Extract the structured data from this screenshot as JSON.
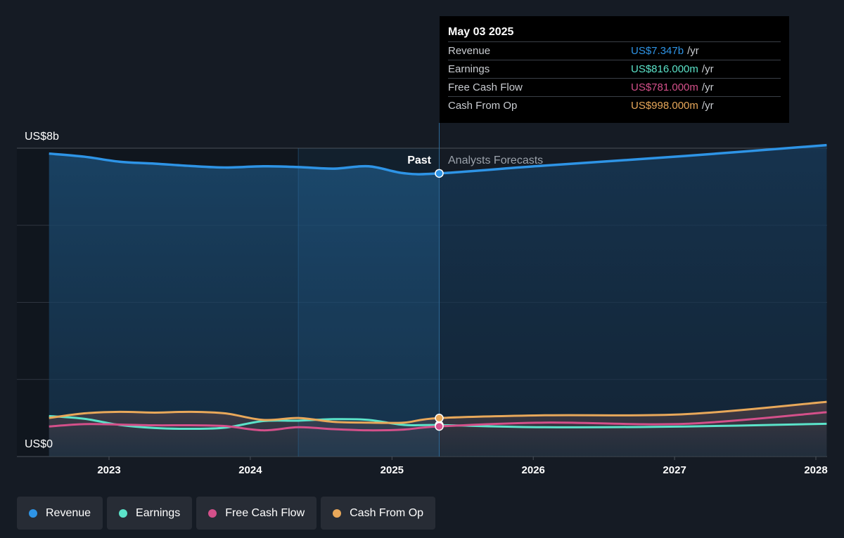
{
  "chart_data": {
    "type": "line",
    "y_axis": {
      "min": 0,
      "max": 8,
      "unit": "US$b",
      "top_label": "US$8b",
      "bottom_label": "US$0"
    },
    "x_axis": {
      "ticks": [
        "2023",
        "2024",
        "2025",
        "2026",
        "2027",
        "2028"
      ]
    },
    "regions": {
      "past_label": "Past",
      "forecast_label": "Analysts Forecasts",
      "divider_date": "2025-05-03"
    },
    "series": [
      {
        "name": "Revenue",
        "color": "#2e94e6",
        "points": [
          [
            "2022-07-30",
            7.86
          ],
          [
            "2022-10-29",
            7.78
          ],
          [
            "2023-01-28",
            7.65
          ],
          [
            "2023-04-29",
            7.6
          ],
          [
            "2023-07-29",
            7.54
          ],
          [
            "2023-10-28",
            7.5
          ],
          [
            "2024-02-03",
            7.53
          ],
          [
            "2024-05-04",
            7.51
          ],
          [
            "2024-08-03",
            7.47
          ],
          [
            "2024-11-02",
            7.53
          ],
          [
            "2025-02-01",
            7.35
          ],
          [
            "2025-05-03",
            7.347
          ],
          [
            "2026-01-31",
            7.55
          ],
          [
            "2027-01-30",
            7.8
          ],
          [
            "2028-01-29",
            8.08
          ]
        ]
      },
      {
        "name": "Earnings",
        "color": "#5be3c9",
        "points": [
          [
            "2022-07-30",
            1.05
          ],
          [
            "2022-10-29",
            0.98
          ],
          [
            "2023-01-28",
            0.82
          ],
          [
            "2023-04-29",
            0.74
          ],
          [
            "2023-07-29",
            0.72
          ],
          [
            "2023-10-28",
            0.75
          ],
          [
            "2024-02-03",
            0.92
          ],
          [
            "2024-05-04",
            0.93
          ],
          [
            "2024-08-03",
            0.97
          ],
          [
            "2024-11-02",
            0.95
          ],
          [
            "2025-02-01",
            0.82
          ],
          [
            "2025-05-03",
            0.816
          ],
          [
            "2026-01-31",
            0.76
          ],
          [
            "2027-01-30",
            0.78
          ],
          [
            "2028-01-29",
            0.85
          ]
        ]
      },
      {
        "name": "Free Cash Flow",
        "color": "#d4508a",
        "points": [
          [
            "2022-07-30",
            0.78
          ],
          [
            "2022-10-29",
            0.84
          ],
          [
            "2023-01-28",
            0.83
          ],
          [
            "2023-04-29",
            0.81
          ],
          [
            "2023-07-29",
            0.81
          ],
          [
            "2023-10-28",
            0.79
          ],
          [
            "2024-02-03",
            0.68
          ],
          [
            "2024-05-04",
            0.76
          ],
          [
            "2024-08-03",
            0.71
          ],
          [
            "2024-11-02",
            0.68
          ],
          [
            "2025-02-01",
            0.7
          ],
          [
            "2025-05-03",
            0.781
          ],
          [
            "2026-01-31",
            0.88
          ],
          [
            "2027-01-30",
            0.85
          ],
          [
            "2028-01-29",
            1.15
          ]
        ]
      },
      {
        "name": "Cash From Op",
        "color": "#e8a85a",
        "points": [
          [
            "2022-07-30",
            1.0
          ],
          [
            "2022-10-29",
            1.12
          ],
          [
            "2023-01-28",
            1.16
          ],
          [
            "2023-04-29",
            1.14
          ],
          [
            "2023-07-29",
            1.16
          ],
          [
            "2023-10-28",
            1.12
          ],
          [
            "2024-02-03",
            0.95
          ],
          [
            "2024-05-04",
            1.0
          ],
          [
            "2024-08-03",
            0.9
          ],
          [
            "2024-11-02",
            0.88
          ],
          [
            "2025-02-01",
            0.88
          ],
          [
            "2025-05-03",
            0.998
          ],
          [
            "2026-01-31",
            1.07
          ],
          [
            "2027-01-30",
            1.1
          ],
          [
            "2028-01-29",
            1.42
          ]
        ]
      }
    ]
  },
  "tooltip": {
    "date": "May 03 2025",
    "rows": [
      {
        "label": "Revenue",
        "value": "US$7.347b",
        "unit": "/yr",
        "color": "#2e94e6"
      },
      {
        "label": "Earnings",
        "value": "US$816.000m",
        "unit": "/yr",
        "color": "#5be3c9"
      },
      {
        "label": "Free Cash Flow",
        "value": "US$781.000m",
        "unit": "/yr",
        "color": "#d4508a"
      },
      {
        "label": "Cash From Op",
        "value": "US$998.000m",
        "unit": "/yr",
        "color": "#e8a85a"
      }
    ]
  },
  "legend": [
    {
      "label": "Revenue",
      "color": "#2e94e6"
    },
    {
      "label": "Earnings",
      "color": "#5be3c9"
    },
    {
      "label": "Free Cash Flow",
      "color": "#d4508a"
    },
    {
      "label": "Cash From Op",
      "color": "#e8a85a"
    }
  ]
}
